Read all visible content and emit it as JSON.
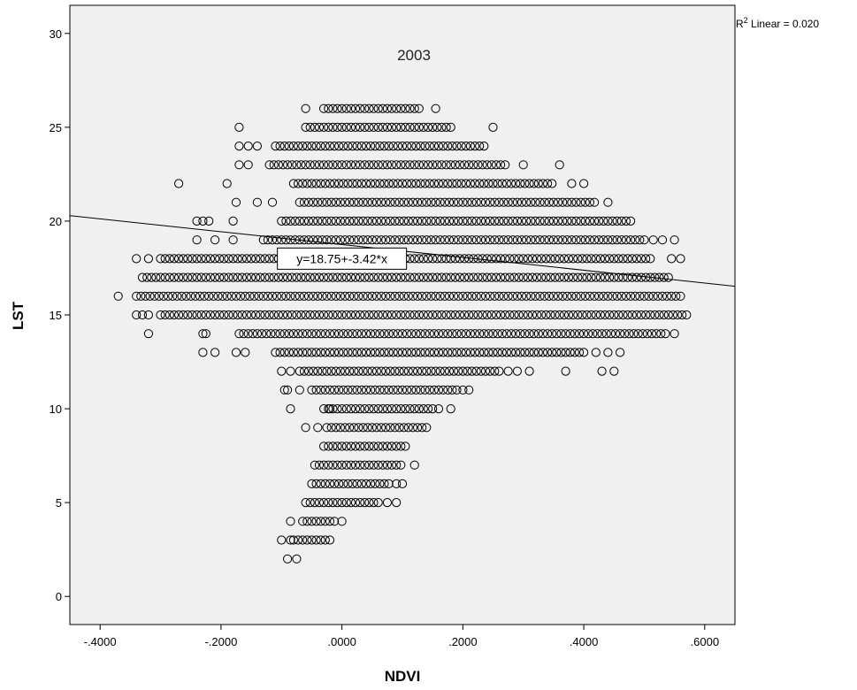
{
  "chart_data": {
    "type": "scatter",
    "title": "2003",
    "xlabel": "NDVI",
    "ylabel": "LST",
    "xlim": [
      -0.45,
      0.65
    ],
    "ylim": [
      -1.5,
      31.5
    ],
    "x_ticks": [
      -0.4,
      -0.2,
      0.0,
      0.2,
      0.4,
      0.6
    ],
    "x_tick_labels": [
      "-.4000",
      "-.2000",
      ".0000",
      ".2000",
      ".4000",
      ".6000"
    ],
    "y_ticks": [
      0,
      5,
      10,
      15,
      20,
      25,
      30
    ],
    "y_tick_labels": [
      "0",
      "5",
      "10",
      "15",
      "20",
      "25",
      "30"
    ],
    "grid": false,
    "marker": "open-circle",
    "point_groups": [
      {
        "y": 26,
        "ranges": [
          [
            -0.03,
            0.13
          ]
        ],
        "isolated": [
          -0.06,
          0.155
        ]
      },
      {
        "y": 25,
        "ranges": [
          [
            -0.06,
            0.18
          ]
        ],
        "isolated": [
          -0.17,
          0.25
        ]
      },
      {
        "y": 24,
        "ranges": [
          [
            -0.11,
            0.24
          ]
        ],
        "isolated": [
          -0.17,
          -0.155,
          -0.14
        ]
      },
      {
        "y": 23,
        "ranges": [
          [
            -0.12,
            0.27
          ]
        ],
        "isolated": [
          -0.17,
          -0.155,
          0.3,
          0.36
        ]
      },
      {
        "y": 22,
        "ranges": [
          [
            -0.08,
            0.35
          ]
        ],
        "isolated": [
          -0.27,
          -0.19,
          0.38,
          0.4
        ]
      },
      {
        "y": 21,
        "ranges": [
          [
            -0.07,
            0.42
          ]
        ],
        "isolated": [
          -0.175,
          -0.14,
          -0.115,
          0.44
        ]
      },
      {
        "y": 20,
        "ranges": [
          [
            -0.1,
            0.48
          ]
        ],
        "isolated": [
          -0.24,
          -0.23,
          -0.22,
          -0.18
        ]
      },
      {
        "y": 19,
        "ranges": [
          [
            -0.13,
            0.5
          ]
        ],
        "isolated": [
          -0.24,
          -0.21,
          -0.18,
          0.515,
          0.53,
          0.55
        ]
      },
      {
        "y": 18,
        "ranges": [
          [
            -0.3,
            0.51
          ]
        ],
        "isolated": [
          -0.34,
          -0.32,
          0.545,
          0.56
        ]
      },
      {
        "y": 17,
        "ranges": [
          [
            -0.33,
            0.54
          ]
        ],
        "isolated": []
      },
      {
        "y": 16,
        "ranges": [
          [
            -0.34,
            0.56
          ]
        ],
        "isolated": [
          -0.37
        ]
      },
      {
        "y": 15,
        "ranges": [
          [
            -0.3,
            0.57
          ]
        ],
        "isolated": [
          -0.34,
          -0.33,
          -0.32
        ]
      },
      {
        "y": 14,
        "ranges": [
          [
            -0.17,
            0.54
          ]
        ],
        "isolated": [
          -0.32,
          -0.23,
          -0.225,
          0.55
        ]
      },
      {
        "y": 13,
        "ranges": [
          [
            -0.11,
            0.4
          ]
        ],
        "isolated": [
          -0.23,
          -0.21,
          -0.175,
          -0.16,
          0.42,
          0.44,
          0.46
        ]
      },
      {
        "y": 12,
        "ranges": [
          [
            -0.07,
            0.26
          ]
        ],
        "isolated": [
          -0.1,
          -0.085,
          0.275,
          0.29,
          0.31,
          0.37,
          0.43,
          0.45
        ]
      },
      {
        "y": 11,
        "ranges": [
          [
            -0.05,
            0.19
          ]
        ],
        "isolated": [
          -0.095,
          -0.09,
          -0.07,
          0.2,
          0.21
        ]
      },
      {
        "y": 10,
        "ranges": [
          [
            -0.03,
            0.15
          ]
        ],
        "isolated": [
          -0.085,
          -0.02,
          0.16,
          0.18
        ]
      },
      {
        "y": 9,
        "ranges": [
          [
            -0.025,
            0.14
          ]
        ],
        "isolated": [
          -0.06,
          -0.04
        ]
      },
      {
        "y": 8,
        "ranges": [
          [
            -0.03,
            0.11
          ]
        ],
        "isolated": []
      },
      {
        "y": 7,
        "ranges": [
          [
            -0.045,
            0.1
          ]
        ],
        "isolated": [
          0.12
        ]
      },
      {
        "y": 6,
        "ranges": [
          [
            -0.05,
            0.08
          ]
        ],
        "isolated": [
          0.09,
          0.1
        ]
      },
      {
        "y": 5,
        "ranges": [
          [
            -0.06,
            0.06
          ]
        ],
        "isolated": [
          0.075,
          0.09
        ]
      },
      {
        "y": 4,
        "ranges": [
          [
            -0.065,
            -0.01
          ]
        ],
        "isolated": [
          -0.085,
          0.0
        ]
      },
      {
        "y": 3,
        "ranges": [
          [
            -0.08,
            -0.02
          ]
        ],
        "isolated": [
          -0.1,
          -0.085
        ]
      },
      {
        "y": 2,
        "ranges": [],
        "isolated": [
          -0.09,
          -0.075
        ]
      }
    ],
    "fit_line": {
      "intercept": 18.75,
      "slope": -3.42
    },
    "fit_label": "y=18.75+-3.42*x",
    "fit_label_at": {
      "x": 0.0,
      "y": 18.0
    },
    "r2_label": {
      "prefix": "R",
      "superscript": "2",
      "text": " Linear = 0.020"
    },
    "colors": {
      "plot_bg": "#f0f0f0",
      "marker": "#000000",
      "line": "#000000"
    }
  }
}
